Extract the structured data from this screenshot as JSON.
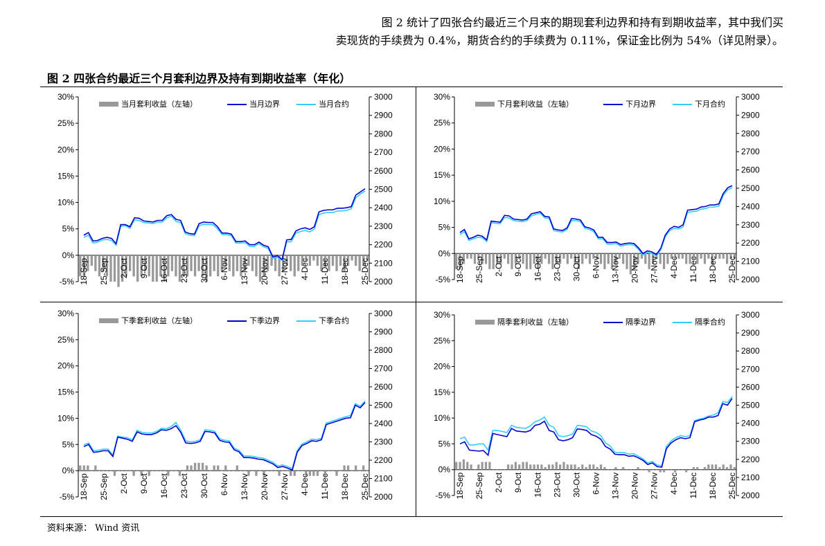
{
  "intro": {
    "line1": "图 2 统计了四张合约最近三个月来的期现套利边界和持有到期收益率，其中我们买",
    "line2": "卖现货的手续费为 0.4%，期货合约的手续费为 0.11%，保证金比例为 54%（详见附录）。"
  },
  "figure_title": "图 2  四张合约最近三个月套利边界及持有到期收益率（年化）",
  "source": "资料来源：   Wind 资讯",
  "colors": {
    "bar": "#999999",
    "boundary": "#0000cc",
    "contract": "#33ccff"
  },
  "chart_data": [
    {
      "type": "bar+line",
      "x_ticks": [
        "18-Sep",
        "25-Sep",
        "2-Oct",
        "9-Oct",
        "16-Oct",
        "23-Oct",
        "30-Oct",
        "6-Nov",
        "13-Nov",
        "20-Nov",
        "27-Nov",
        "4-Dec",
        "11-Dec",
        "18-Dec",
        "25-Dec"
      ],
      "y_left": {
        "min": -5,
        "max": 30,
        "ticks": [
          "-5%",
          "0%",
          "5%",
          "10%",
          "15%",
          "20%",
          "25%",
          "30%"
        ]
      },
      "y_right": {
        "min": 2000,
        "max": 3000,
        "ticks": [
          "2000",
          "2100",
          "2200",
          "2300",
          "2400",
          "2500",
          "2600",
          "2700",
          "2800",
          "2900",
          "3000"
        ]
      },
      "legend": [
        "当月套利收益（左轴）",
        "当月边界",
        "当月合约"
      ],
      "bars": [
        -4,
        -4,
        -3,
        -2,
        -3,
        -4,
        -3,
        -4,
        -5,
        -5,
        -6,
        -5,
        -4,
        -3,
        -4,
        -5,
        -4,
        -3,
        -4,
        -5,
        -5,
        -4,
        -5,
        -4,
        -3,
        -4,
        -5,
        -4,
        -4,
        -3,
        -4,
        -3,
        -4,
        -5,
        -4,
        -3,
        -4,
        -3,
        -2,
        -3,
        -4,
        -3,
        -4,
        -3,
        -2,
        -3,
        -4,
        -5,
        -4,
        -3,
        -2,
        -3,
        -4,
        -3,
        -2,
        -3,
        -4,
        -3,
        -2,
        -1,
        -2,
        -1,
        -2,
        -3,
        -2,
        -3,
        -2,
        -3,
        -2,
        -3,
        -2,
        -1,
        -2,
        -3,
        -2,
        -1
      ],
      "boundary": [
        3.8,
        4.3,
        2.7,
        2.8,
        3.2,
        3.4,
        3.2,
        2.2,
        5.8,
        5.8,
        5.4,
        7.1,
        7.0,
        6.5,
        6.4,
        6.3,
        6.6,
        6.6,
        7.5,
        7.7,
        6.8,
        6.6,
        4.4,
        4.1,
        4.0,
        6.0,
        6.3,
        6.2,
        6.2,
        5.4,
        4.2,
        4.2,
        4.0,
        2.6,
        2.6,
        2.7,
        2.0,
        2.0,
        2.5,
        1.9,
        1.6,
        -0.3,
        -0.1,
        -0.8,
        2.9,
        3.0,
        4.6,
        5.0,
        5.2,
        4.9,
        5.4,
        8.2,
        8.5,
        8.6,
        8.6,
        8.9,
        8.9,
        9.0,
        9.2,
        11.4,
        12.0,
        12.6
      ],
      "contract": [
        3.4,
        3.8,
        2.3,
        2.5,
        2.9,
        3.0,
        2.8,
        1.9,
        5.5,
        5.6,
        5.1,
        6.7,
        6.6,
        6.2,
        6.1,
        6.0,
        6.3,
        6.3,
        7.1,
        7.4,
        6.4,
        6.2,
        4.1,
        3.8,
        3.7,
        5.6,
        5.9,
        5.8,
        5.8,
        5.0,
        3.9,
        3.9,
        3.7,
        2.3,
        2.3,
        2.4,
        1.7,
        1.7,
        2.2,
        1.6,
        1.3,
        -0.6,
        -0.4,
        -1.0,
        2.5,
        2.6,
        4.2,
        4.5,
        4.7,
        4.4,
        5.0,
        7.7,
        8.0,
        8.1,
        8.1,
        8.4,
        8.4,
        8.5,
        8.8,
        10.9,
        11.6,
        12.2
      ]
    },
    {
      "type": "bar+line",
      "x_ticks": [
        "18-Sep",
        "25-Sep",
        "2-Oct",
        "9-Oct",
        "16-Oct",
        "23-Oct",
        "30-Oct",
        "6-Nov",
        "13-Nov",
        "20-Nov",
        "27-Nov",
        "4-Dec",
        "11-Dec",
        "18-Dec",
        "25-Dec"
      ],
      "y_left": {
        "min": -5,
        "max": 30,
        "ticks": [
          "-5%",
          "0%",
          "5%",
          "10%",
          "15%",
          "20%",
          "25%",
          "30%"
        ]
      },
      "y_right": {
        "min": 2000,
        "max": 3000,
        "ticks": [
          "2000",
          "2100",
          "2200",
          "2300",
          "2400",
          "2500",
          "2600",
          "2700",
          "2800",
          "2900",
          "3000"
        ]
      },
      "legend": [
        "下月套利收益（左轴）",
        "下月边界",
        "下月合约"
      ],
      "bars": [
        -3,
        -3,
        -2,
        -1,
        -1,
        -2,
        -1,
        -2,
        -2,
        -3,
        -3,
        -2,
        -2,
        -1,
        -2,
        -3,
        -2,
        -1,
        -2,
        -3,
        -3,
        -2,
        -3,
        -2,
        -1,
        -2,
        -3,
        -2,
        -2,
        -1,
        -2,
        -1,
        -2,
        -3,
        -2,
        -1,
        -2,
        -1,
        -1,
        -2,
        -3,
        -2,
        -3,
        -2,
        -1,
        -2,
        -3,
        -4,
        -3,
        -2,
        -1,
        -2,
        -3,
        -2,
        -1,
        -2,
        -3,
        -2,
        -1,
        -1,
        -1,
        -1,
        -2,
        -2,
        -1,
        -2,
        -1,
        -2,
        -1,
        -2,
        -1,
        -1,
        -1,
        -2,
        -1,
        -1
      ],
      "boundary": [
        4.0,
        4.6,
        2.8,
        3.1,
        3.5,
        3.3,
        2.6,
        6.2,
        6.1,
        6.0,
        7.3,
        7.2,
        6.6,
        6.5,
        6.4,
        6.6,
        7.6,
        7.8,
        8.0,
        7.1,
        7.0,
        4.7,
        4.5,
        4.4,
        4.9,
        6.7,
        6.6,
        6.4,
        5.1,
        4.9,
        4.5,
        3.1,
        3.1,
        2.1,
        2.1,
        2.2,
        1.7,
        1.9,
        2.0,
        1.9,
        1.1,
        0.0,
        0.5,
        0.3,
        -0.2,
        1.0,
        3.5,
        4.7,
        5.2,
        5.0,
        5.5,
        8.3,
        8.4,
        8.5,
        8.9,
        9.0,
        9.3,
        9.3,
        9.5,
        11.5,
        12.6,
        13.0
      ],
      "contract": [
        3.6,
        4.2,
        2.5,
        2.8,
        3.1,
        3.0,
        2.3,
        5.9,
        5.8,
        5.7,
        6.9,
        6.8,
        6.3,
        6.2,
        6.1,
        6.3,
        7.2,
        7.5,
        7.7,
        6.8,
        6.7,
        4.4,
        4.2,
        4.1,
        4.6,
        6.3,
        6.3,
        6.1,
        4.8,
        4.6,
        4.2,
        2.8,
        2.8,
        1.8,
        1.8,
        1.9,
        1.4,
        1.6,
        1.7,
        1.6,
        0.8,
        -0.3,
        0.2,
        0.0,
        -0.5,
        0.7,
        3.2,
        4.4,
        4.8,
        4.7,
        5.1,
        7.9,
        8.0,
        8.1,
        8.5,
        8.6,
        8.9,
        8.9,
        9.1,
        11.1,
        12.2,
        12.6
      ]
    },
    {
      "type": "bar+line",
      "x_ticks": [
        "18-Sep",
        "25-Sep",
        "2-Oct",
        "9-Oct",
        "16-Oct",
        "23-Oct",
        "30-Oct",
        "6-Nov",
        "13-Nov",
        "20-Nov",
        "27-Nov",
        "4-Dec",
        "11-Dec",
        "18-Dec",
        "25-Dec"
      ],
      "y_left": {
        "min": -5,
        "max": 30,
        "ticks": [
          "-5%",
          "0%",
          "5%",
          "10%",
          "15%",
          "20%",
          "25%",
          "30%"
        ]
      },
      "y_right": {
        "min": 2000,
        "max": 3000,
        "ticks": [
          "2000",
          "2100",
          "2200",
          "2300",
          "2400",
          "2500",
          "2600",
          "2700",
          "2800",
          "2900",
          "3000"
        ]
      },
      "legend": [
        "下季套利收益（左轴）",
        "下季边界",
        "下季合约"
      ],
      "bars": [
        1,
        1,
        1,
        0,
        1,
        0,
        0,
        0,
        0,
        -1,
        0,
        0,
        0,
        0,
        -1,
        0,
        -1,
        0,
        -1,
        0,
        0,
        0,
        0,
        -1,
        0,
        0,
        -1,
        0,
        1,
        1,
        1.5,
        1.5,
        1.5,
        1,
        0,
        1,
        1,
        0,
        1,
        0,
        0,
        1,
        0,
        0,
        -1,
        0,
        -1,
        0,
        -1,
        0,
        0,
        0,
        -1,
        0,
        0,
        -1,
        -1,
        0,
        0,
        -1,
        -1,
        -1,
        -1,
        0,
        -1,
        0,
        0,
        -1,
        0,
        1,
        1,
        0,
        1,
        0,
        1,
        0
      ],
      "boundary": [
        4.6,
        5.0,
        3.5,
        3.6,
        3.8,
        3.8,
        2.7,
        6.4,
        6.2,
        6.0,
        5.6,
        7.4,
        7.0,
        6.9,
        6.9,
        7.2,
        7.8,
        7.7,
        8.0,
        8.6,
        7.3,
        5.3,
        5.2,
        5.3,
        5.6,
        7.5,
        7.4,
        7.2,
        5.8,
        5.5,
        5.4,
        4.0,
        3.6,
        2.5,
        2.5,
        2.4,
        2.2,
        2.1,
        1.7,
        1.3,
        0.6,
        0.8,
        0.5,
        0.1,
        3.5,
        4.8,
        5.2,
        5.7,
        5.6,
        5.9,
        8.8,
        9.1,
        9.4,
        9.7,
        10.0,
        10.1,
        12.5,
        12.0,
        13.0
      ],
      "contract": [
        4.9,
        5.3,
        3.8,
        3.9,
        4.1,
        4.1,
        3.0,
        6.6,
        6.4,
        6.3,
        5.9,
        7.7,
        7.3,
        7.2,
        7.2,
        7.5,
        8.1,
        8.0,
        8.4,
        9.2,
        7.7,
        5.7,
        5.5,
        5.6,
        5.9,
        7.8,
        7.7,
        7.5,
        6.1,
        5.8,
        5.7,
        4.3,
        3.9,
        2.8,
        2.8,
        2.7,
        2.5,
        2.4,
        2.0,
        1.6,
        0.9,
        1.1,
        0.8,
        0.4,
        3.8,
        5.1,
        5.5,
        6.0,
        5.9,
        6.2,
        9.1,
        9.4,
        9.7,
        10.0,
        10.3,
        10.5,
        12.8,
        12.3,
        13.3
      ]
    },
    {
      "type": "bar+line",
      "x_ticks": [
        "18-Sep",
        "25-Sep",
        "2-Oct",
        "9-Oct",
        "16-Oct",
        "23-Oct",
        "30-Oct",
        "6-Nov",
        "13-Nov",
        "20-Nov",
        "27-Nov",
        "4-Dec",
        "11-Dec",
        "18-Dec",
        "25-Dec"
      ],
      "y_left": {
        "min": -5,
        "max": 30,
        "ticks": [
          "-5%",
          "0%",
          "5%",
          "10%",
          "15%",
          "20%",
          "25%",
          "30%"
        ]
      },
      "y_right": {
        "min": 2000,
        "max": 3000,
        "ticks": [
          "2000",
          "2100",
          "2200",
          "2300",
          "2400",
          "2500",
          "2600",
          "2700",
          "2800",
          "2900",
          "3000"
        ]
      },
      "legend": [
        "隔季套利收益（左轴）",
        "隔季边界",
        "隔季合约"
      ],
      "bars": [
        1.5,
        1.5,
        2,
        1.5,
        1,
        0,
        1,
        1.5,
        1.5,
        1.5,
        0,
        0,
        0,
        0,
        1,
        1,
        1.5,
        1,
        1.5,
        1.5,
        1,
        1,
        1,
        1,
        0.5,
        1,
        1,
        1.5,
        1,
        1.5,
        1,
        1,
        1,
        0.5,
        1,
        0.5,
        1,
        1,
        0.5,
        1,
        0.5,
        0,
        0,
        0.5,
        0,
        0.5,
        0,
        0,
        0,
        0.5,
        0,
        0,
        -0.5,
        0,
        0,
        -0.5,
        -0.5,
        0,
        0,
        -0.5,
        0,
        0,
        -0.5,
        0,
        0.5,
        0.5,
        0,
        0.5,
        1,
        1,
        1,
        0.5,
        1,
        0.5,
        1,
        0.5
      ],
      "boundary": [
        5.0,
        5.4,
        3.8,
        3.7,
        3.6,
        3.7,
        2.8,
        7.0,
        6.8,
        6.6,
        6.4,
        8.0,
        7.5,
        7.4,
        7.3,
        7.6,
        8.6,
        8.8,
        9.4,
        7.6,
        7.3,
        5.8,
        5.6,
        5.8,
        6.2,
        7.9,
        7.8,
        7.6,
        6.8,
        6.5,
        5.9,
        4.5,
        4.0,
        3.0,
        2.9,
        2.9,
        2.6,
        2.7,
        2.3,
        1.8,
        1.0,
        1.3,
        0.6,
        0.5,
        4.1,
        5.2,
        5.8,
        6.2,
        6.0,
        6.2,
        9.3,
        9.6,
        9.8,
        10.2,
        10.2,
        10.5,
        12.8,
        12.5,
        13.8
      ],
      "contract": [
        6.0,
        6.3,
        4.8,
        4.8,
        5.0,
        5.0,
        3.8,
        7.6,
        7.6,
        7.4,
        7.2,
        8.6,
        8.2,
        8.1,
        8.0,
        8.5,
        9.3,
        9.6,
        10.2,
        8.6,
        8.2,
        6.6,
        6.4,
        6.6,
        6.9,
        8.6,
        8.5,
        8.3,
        7.5,
        7.2,
        6.6,
        5.2,
        4.6,
        3.4,
        3.3,
        3.3,
        3.0,
        3.1,
        2.6,
        2.1,
        1.3,
        1.6,
        0.9,
        0.8,
        4.5,
        5.6,
        6.2,
        6.6,
        6.4,
        6.6,
        9.5,
        9.8,
        10.0,
        10.4,
        10.6,
        11.0,
        13.2,
        13.0,
        14.2
      ]
    }
  ]
}
